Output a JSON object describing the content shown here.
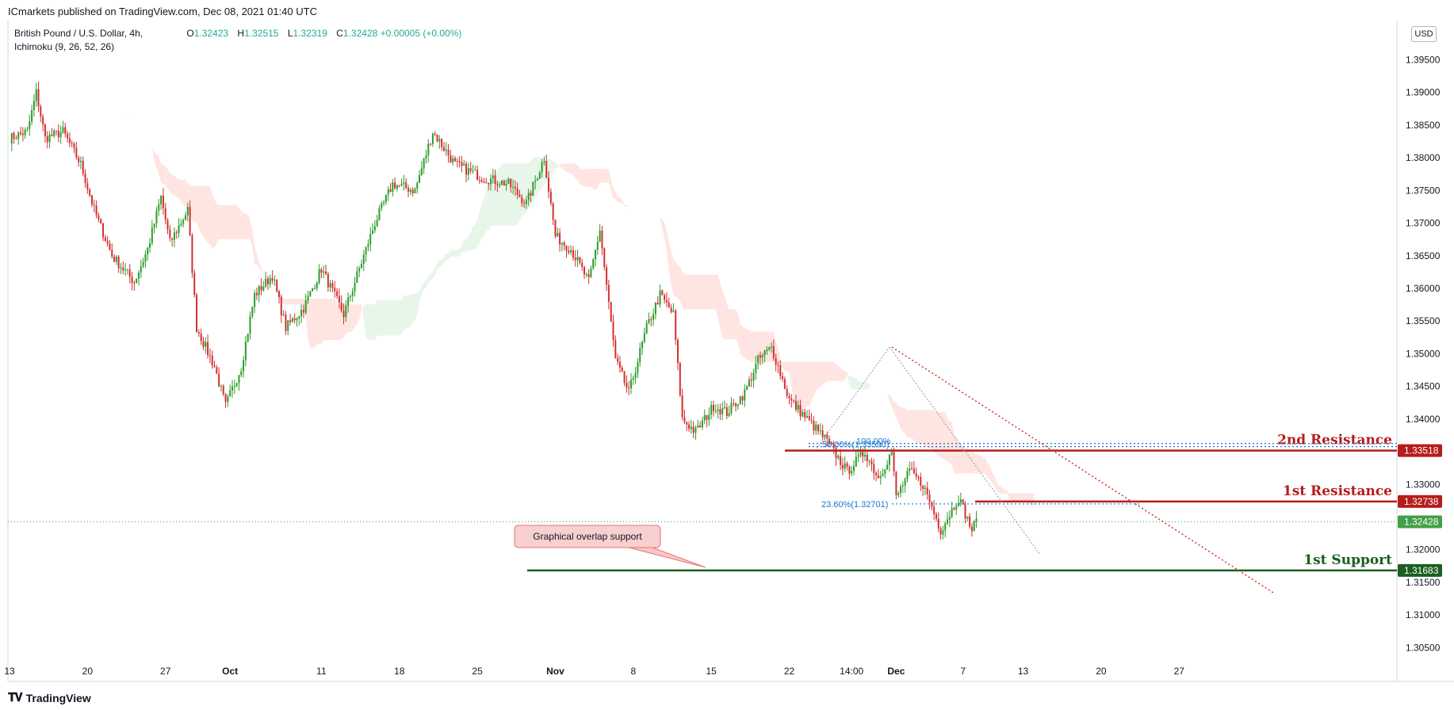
{
  "publisher": "ICmarkets published on TradingView.com, Dec 08, 2021 01:40 UTC",
  "symbol": "British Pound / U.S. Dollar, 4h,",
  "indicator": "Ichimoku (9, 26, 52, 26)",
  "ohlc": {
    "o_label": "O",
    "o": "1.32423",
    "h_label": "H",
    "h": "1.32515",
    "l_label": "L",
    "l": "1.32319",
    "c_label": "C",
    "c": "1.32428",
    "change": "+0.00005 (+0.00%)"
  },
  "currency": "USD",
  "footer_brand": "TradingView",
  "colors": {
    "up": "#26a69a",
    "up_candle": "#2a9d2a",
    "down": "#d32f2f",
    "resistance": "#b71c1c",
    "support": "#1b5e20",
    "fib": "#1976d2",
    "trendline": "#d32f2f",
    "cloud_bull": "#e8f5e9",
    "cloud_bear": "#ffe4e1",
    "last_price": "#43a047"
  },
  "chart_data": {
    "type": "candlestick",
    "ylim": [
      1.3025,
      1.401
    ],
    "y_ticks": [
      "1.39500",
      "1.39000",
      "1.38500",
      "1.38000",
      "1.37500",
      "1.37000",
      "1.36500",
      "1.36000",
      "1.35500",
      "1.35000",
      "1.34500",
      "1.34000",
      "1.33000",
      "1.32000",
      "1.31500",
      "1.31000",
      "1.30500"
    ],
    "y_tick_values": [
      1.395,
      1.39,
      1.385,
      1.38,
      1.375,
      1.37,
      1.365,
      1.36,
      1.355,
      1.35,
      1.345,
      1.34,
      1.33,
      1.32,
      1.315,
      1.31,
      1.305
    ],
    "x_tick_labels": [
      "13",
      "20",
      "27",
      "Oct",
      "11",
      "18",
      "25",
      "Nov",
      "8",
      "15",
      "22",
      "14:00",
      "Dec",
      "7",
      "13",
      "20",
      "27"
    ],
    "x_tick_index": [
      0,
      35,
      70,
      99,
      140,
      175,
      210,
      245,
      280,
      315,
      350,
      378,
      398,
      428,
      455,
      490,
      525
    ],
    "n_slots": 532,
    "close_path": [
      [
        0,
        1.383
      ],
      [
        8,
        1.384
      ],
      [
        12,
        1.39
      ],
      [
        16,
        1.383
      ],
      [
        24,
        1.384
      ],
      [
        32,
        1.379
      ],
      [
        38,
        1.372
      ],
      [
        46,
        1.365
      ],
      [
        56,
        1.361
      ],
      [
        62,
        1.366
      ],
      [
        68,
        1.374
      ],
      [
        72,
        1.367
      ],
      [
        80,
        1.372
      ],
      [
        84,
        1.354
      ],
      [
        92,
        1.348
      ],
      [
        97,
        1.342
      ],
      [
        104,
        1.348
      ],
      [
        110,
        1.359
      ],
      [
        118,
        1.362
      ],
      [
        124,
        1.354
      ],
      [
        132,
        1.357
      ],
      [
        140,
        1.363
      ],
      [
        150,
        1.356
      ],
      [
        164,
        1.37
      ],
      [
        172,
        1.376
      ],
      [
        182,
        1.375
      ],
      [
        190,
        1.384
      ],
      [
        200,
        1.379
      ],
      [
        212,
        1.377
      ],
      [
        224,
        1.376
      ],
      [
        232,
        1.373
      ],
      [
        240,
        1.38
      ],
      [
        245,
        1.368
      ],
      [
        252,
        1.366
      ],
      [
        260,
        1.361
      ],
      [
        265,
        1.369
      ],
      [
        272,
        1.349
      ],
      [
        278,
        1.344
      ],
      [
        286,
        1.354
      ],
      [
        292,
        1.359
      ],
      [
        298,
        1.356
      ],
      [
        302,
        1.34
      ],
      [
        308,
        1.338
      ],
      [
        316,
        1.342
      ],
      [
        322,
        1.341
      ],
      [
        330,
        1.344
      ],
      [
        336,
        1.349
      ],
      [
        342,
        1.351
      ],
      [
        350,
        1.343
      ],
      [
        358,
        1.34
      ],
      [
        366,
        1.337
      ],
      [
        376,
        1.332
      ],
      [
        384,
        1.335
      ],
      [
        390,
        1.331
      ],
      [
        396,
        1.335
      ],
      [
        398,
        1.328
      ],
      [
        404,
        1.332
      ],
      [
        410,
        1.33
      ],
      [
        418,
        1.323
      ],
      [
        426,
        1.328
      ],
      [
        432,
        1.323
      ],
      [
        434,
        1.3243
      ]
    ],
    "levels": [
      {
        "name": "2nd Resistance",
        "value": 1.33518,
        "label": "1.33518"
      },
      {
        "name": "1st Resistance",
        "value": 1.32738,
        "label": "1.32738"
      },
      {
        "name": "1st Support",
        "value": 1.31683,
        "label": "1.31683"
      }
    ],
    "last_price": {
      "value": 1.32428,
      "label": "1.32428"
    },
    "fib_levels": [
      {
        "label": "50.00%(1.33590)",
        "value": 1.3359
      },
      {
        "label": "100.00%",
        "value": 1.3359
      },
      {
        "label": "23.60%(1.32701)",
        "value": 1.32701
      }
    ],
    "annotation": "Graphical overlap support",
    "level_labels": {
      "r2": "2nd Resistance",
      "r1": "1st Resistance",
      "s1": "1st Support"
    }
  }
}
